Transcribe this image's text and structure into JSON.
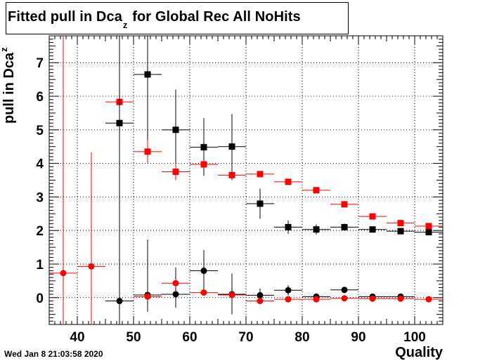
{
  "title": {
    "main": "Fitted pull in Dca",
    "sub": "z",
    "rest": "for Global Rec All NoHits"
  },
  "ylabel": {
    "main": "pull in Dca",
    "sub": "z"
  },
  "xlabel": "Quality",
  "datestamp": "Wed Jan  8 21:03:58 2020",
  "chart_data": {
    "type": "scatter",
    "xlim": [
      35,
      105
    ],
    "ylim": [
      -0.8,
      7.8
    ],
    "xticks": [
      40,
      50,
      60,
      70,
      80,
      90,
      100
    ],
    "yticks": [
      0,
      1,
      2,
      3,
      4,
      5,
      6,
      7
    ],
    "grid": true,
    "series": [
      {
        "color": "#000000",
        "marker": "square",
        "points": [
          {
            "x": 47.5,
            "y": 5.2,
            "xerr": 2.5,
            "yerr_lo": 1.8,
            "yerr_hi": 2.6
          },
          {
            "x": 52.5,
            "y": 6.65,
            "xerr": 2.5,
            "yerr_lo": 2.0,
            "yerr_hi": 1.15
          },
          {
            "x": 57.5,
            "y": 5.0,
            "xerr": 2.5,
            "yerr_lo": 1.0,
            "yerr_hi": 1.2
          },
          {
            "x": 62.5,
            "y": 4.48,
            "xerr": 2.5,
            "yerr_lo": 0.85,
            "yerr_hi": 0.87
          },
          {
            "x": 67.5,
            "y": 4.5,
            "xerr": 2.5,
            "yerr_lo": 1.0,
            "yerr_hi": 0.97
          },
          {
            "x": 72.5,
            "y": 2.8,
            "xerr": 2.5,
            "yerr_lo": 0.45,
            "yerr_hi": 0.45
          },
          {
            "x": 77.5,
            "y": 2.1,
            "xerr": 2.5,
            "yerr_lo": 0.2,
            "yerr_hi": 0.2
          },
          {
            "x": 82.5,
            "y": 2.03,
            "xerr": 2.5,
            "yerr_lo": 0.15,
            "yerr_hi": 0.15
          },
          {
            "x": 87.5,
            "y": 2.1,
            "xerr": 2.5,
            "yerr_lo": 0.1,
            "yerr_hi": 0.1
          },
          {
            "x": 92.5,
            "y": 2.03,
            "xerr": 2.5,
            "yerr_lo": 0.07,
            "yerr_hi": 0.07
          },
          {
            "x": 97.5,
            "y": 1.98,
            "xerr": 2.5,
            "yerr_lo": 0.06,
            "yerr_hi": 0.06
          },
          {
            "x": 102.5,
            "y": 1.95,
            "xerr": 2.5,
            "yerr_lo": 0.05,
            "yerr_hi": 0.05
          }
        ]
      },
      {
        "color": "#ff0000",
        "marker": "square",
        "points": [
          {
            "x": 47.5,
            "y": 5.83,
            "xerr": 2.5,
            "yerr_lo": 1.25,
            "yerr_hi": 1.0
          },
          {
            "x": 52.5,
            "y": 4.35,
            "xerr": 2.5,
            "yerr_lo": 0.35,
            "yerr_hi": 0.35
          },
          {
            "x": 57.5,
            "y": 3.75,
            "xerr": 2.5,
            "yerr_lo": 0.25,
            "yerr_hi": 0.25
          },
          {
            "x": 62.5,
            "y": 3.97,
            "xerr": 2.5,
            "yerr_lo": 0.12,
            "yerr_hi": 0.12
          },
          {
            "x": 67.5,
            "y": 3.65,
            "xerr": 2.5,
            "yerr_lo": 0.1,
            "yerr_hi": 0.1
          },
          {
            "x": 72.5,
            "y": 3.68,
            "xerr": 2.5,
            "yerr_lo": 0.08,
            "yerr_hi": 0.08
          },
          {
            "x": 77.5,
            "y": 3.45,
            "xerr": 2.5,
            "yerr_lo": 0.06,
            "yerr_hi": 0.06
          },
          {
            "x": 82.5,
            "y": 3.2,
            "xerr": 2.5,
            "yerr_lo": 0.05,
            "yerr_hi": 0.05
          },
          {
            "x": 87.5,
            "y": 2.78,
            "xerr": 2.5,
            "yerr_lo": 0.05,
            "yerr_hi": 0.05
          },
          {
            "x": 92.5,
            "y": 2.42,
            "xerr": 2.5,
            "yerr_lo": 0.04,
            "yerr_hi": 0.04
          },
          {
            "x": 97.5,
            "y": 2.22,
            "xerr": 2.5,
            "yerr_lo": 0.04,
            "yerr_hi": 0.04
          },
          {
            "x": 102.5,
            "y": 2.13,
            "xerr": 2.5,
            "yerr_lo": 0.04,
            "yerr_hi": 0.04
          }
        ]
      },
      {
        "color": "#000000",
        "marker": "circle",
        "points": [
          {
            "x": 47.5,
            "y": -0.1,
            "xerr": 2.5,
            "yerr_lo": 0.9,
            "yerr_hi": 8.0
          },
          {
            "x": 52.5,
            "y": 0.08,
            "xerr": 2.5,
            "yerr_lo": 0.5,
            "yerr_hi": 1.65
          },
          {
            "x": 57.5,
            "y": 0.1,
            "xerr": 2.5,
            "yerr_lo": 0.4,
            "yerr_hi": 0.8
          },
          {
            "x": 62.5,
            "y": 0.8,
            "xerr": 2.5,
            "yerr_lo": 0.6,
            "yerr_hi": 0.62
          },
          {
            "x": 67.5,
            "y": 0.1,
            "xerr": 2.5,
            "yerr_lo": 0.6,
            "yerr_hi": 0.62
          },
          {
            "x": 72.5,
            "y": 0.07,
            "xerr": 2.5,
            "yerr_lo": 0.2,
            "yerr_hi": 0.2
          },
          {
            "x": 77.5,
            "y": 0.22,
            "xerr": 2.5,
            "yerr_lo": 0.15,
            "yerr_hi": 0.15
          },
          {
            "x": 82.5,
            "y": 0.03,
            "xerr": 2.5,
            "yerr_lo": 0.1,
            "yerr_hi": 0.1
          },
          {
            "x": 87.5,
            "y": 0.23,
            "xerr": 2.5,
            "yerr_lo": 0.08,
            "yerr_hi": 0.08
          },
          {
            "x": 92.5,
            "y": 0.03,
            "xerr": 2.5,
            "yerr_lo": 0.06,
            "yerr_hi": 0.06
          },
          {
            "x": 97.5,
            "y": 0.03,
            "xerr": 2.5,
            "yerr_lo": 0.05,
            "yerr_hi": 0.05
          }
        ]
      },
      {
        "color": "#ff0000",
        "marker": "circle",
        "points": [
          {
            "x": 37.5,
            "y": 0.73,
            "xerr": 2.5,
            "yerr_lo": 2.0,
            "yerr_hi": 7.5
          },
          {
            "x": 42.5,
            "y": 0.93,
            "xerr": 2.5,
            "yerr_lo": 2.0,
            "yerr_hi": 3.4
          },
          {
            "x": 52.5,
            "y": 0.03,
            "xerr": 2.5,
            "yerr_lo": 0.12,
            "yerr_hi": 0.12
          },
          {
            "x": 57.5,
            "y": 0.43,
            "xerr": 2.5,
            "yerr_lo": 0.12,
            "yerr_hi": 0.12
          },
          {
            "x": 62.5,
            "y": 0.15,
            "xerr": 2.5,
            "yerr_lo": 0.08,
            "yerr_hi": 0.08
          },
          {
            "x": 67.5,
            "y": 0.08,
            "xerr": 2.5,
            "yerr_lo": 0.06,
            "yerr_hi": 0.06
          },
          {
            "x": 72.5,
            "y": -0.1,
            "xerr": 2.5,
            "yerr_lo": 0.05,
            "yerr_hi": 0.05
          },
          {
            "x": 77.5,
            "y": -0.05,
            "xerr": 2.5,
            "yerr_lo": 0.04,
            "yerr_hi": 0.04
          },
          {
            "x": 82.5,
            "y": -0.05,
            "xerr": 2.5,
            "yerr_lo": 0.04,
            "yerr_hi": 0.04
          },
          {
            "x": 87.5,
            "y": -0.02,
            "xerr": 2.5,
            "yerr_lo": 0.03,
            "yerr_hi": 0.03
          },
          {
            "x": 92.5,
            "y": -0.03,
            "xerr": 2.5,
            "yerr_lo": 0.03,
            "yerr_hi": 0.03
          },
          {
            "x": 97.5,
            "y": -0.03,
            "xerr": 2.5,
            "yerr_lo": 0.03,
            "yerr_hi": 0.03
          },
          {
            "x": 102.5,
            "y": -0.05,
            "xerr": 2.5,
            "yerr_lo": 0.03,
            "yerr_hi": 0.03
          }
        ]
      }
    ]
  }
}
